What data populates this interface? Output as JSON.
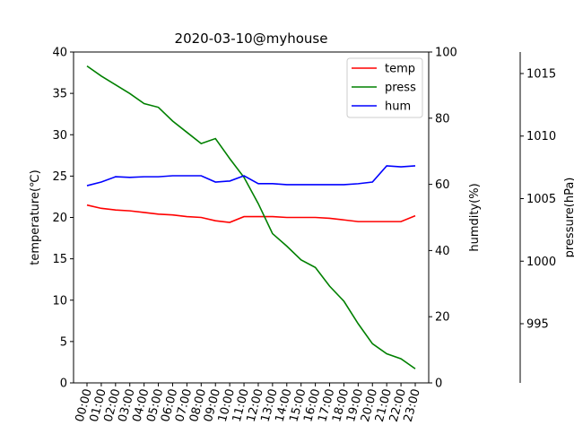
{
  "chart_data": {
    "type": "line",
    "title": "2020-03-10@myhouse",
    "categories": [
      "00:00",
      "01:00",
      "02:00",
      "03:00",
      "04:00",
      "05:00",
      "06:00",
      "07:00",
      "08:00",
      "09:00",
      "10:00",
      "11:00",
      "12:00",
      "13:00",
      "14:00",
      "15:00",
      "16:00",
      "17:00",
      "18:00",
      "19:00",
      "20:00",
      "21:00",
      "22:00",
      "23:00"
    ],
    "series": [
      {
        "name": "temp",
        "color": "#ff0000",
        "axis": "y",
        "values": [
          21.5,
          21.1,
          20.9,
          20.8,
          20.6,
          20.4,
          20.3,
          20.1,
          20.0,
          19.6,
          19.4,
          20.1,
          20.1,
          20.1,
          20.0,
          20.0,
          20.0,
          19.9,
          19.7,
          19.5,
          19.5,
          19.5,
          19.5,
          20.2
        ]
      },
      {
        "name": "press",
        "color": "#008000",
        "axis": "y3",
        "values": [
          1015.6,
          1014.8,
          1014.1,
          1013.4,
          1012.6,
          1012.3,
          1011.2,
          1010.3,
          1009.4,
          1009.8,
          1008.2,
          1006.7,
          1004.6,
          1002.2,
          1001.2,
          1000.1,
          999.5,
          998.0,
          996.8,
          995.0,
          993.4,
          992.6,
          992.2,
          991.4
        ]
      },
      {
        "name": "hum",
        "color": "#0000ff",
        "axis": "y2",
        "values": [
          59.6,
          60.7,
          62.3,
          62.1,
          62.3,
          62.3,
          62.6,
          62.6,
          62.6,
          60.7,
          61.0,
          62.6,
          60.2,
          60.2,
          59.9,
          59.9,
          59.9,
          59.9,
          59.9,
          60.2,
          60.7,
          65.6,
          65.3,
          65.6
        ]
      }
    ],
    "ylabel": "temperature(℃)",
    "ylim": [
      0,
      40
    ],
    "yticks": [
      0,
      5,
      10,
      15,
      20,
      25,
      30,
      35,
      40
    ],
    "y2label": "humdity(%)",
    "y2lim": [
      0,
      100
    ],
    "y2ticks": [
      0,
      20,
      40,
      60,
      80,
      100
    ],
    "y3label": "pressure(hPa)",
    "y3lim": [
      990.27,
      1016.72
    ],
    "y3ticks": [
      995,
      1000,
      1005,
      1010,
      1015
    ],
    "legend": "upper right"
  }
}
